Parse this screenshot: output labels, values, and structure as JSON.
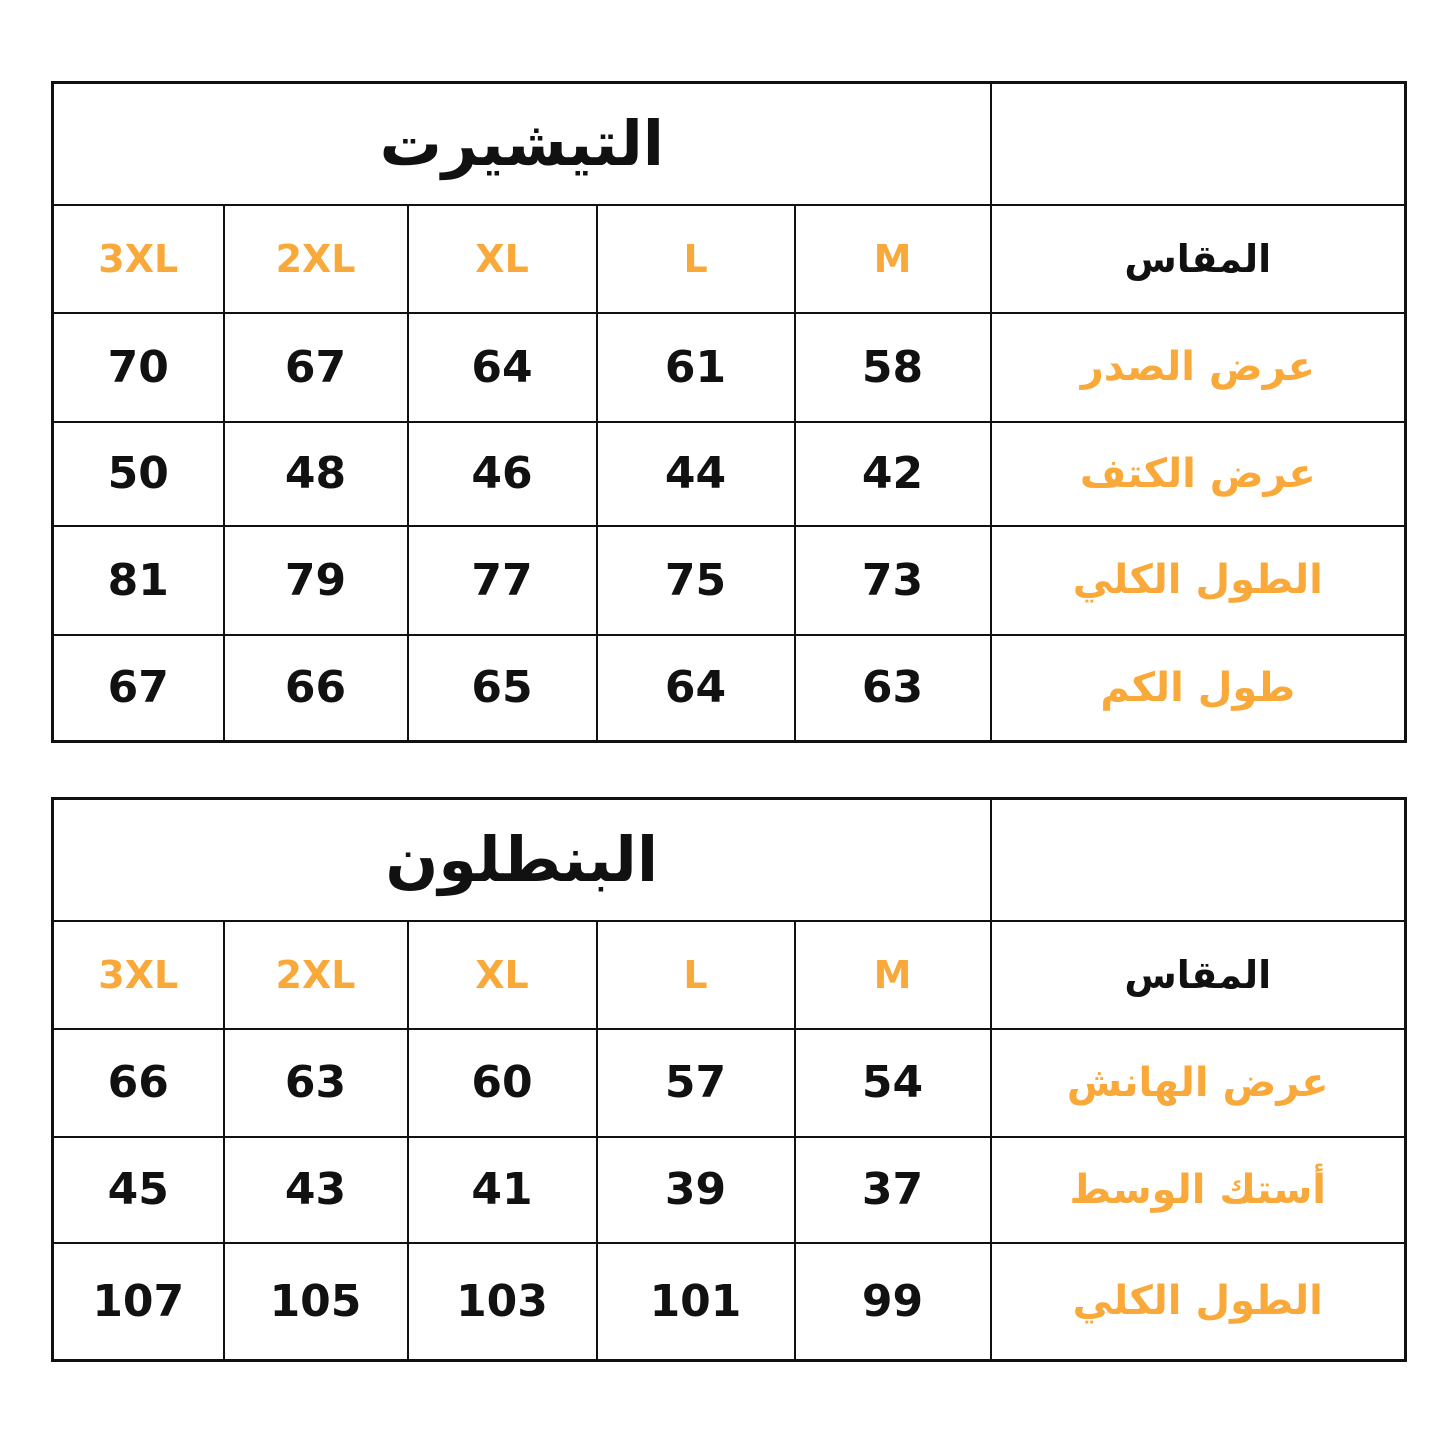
{
  "accent_color": "#f9a93a",
  "tables": [
    {
      "title": "التيشيرت",
      "size_label": "المقاس",
      "sizes": [
        "M",
        "L",
        "XL",
        "2XL",
        "3XL"
      ],
      "rows": [
        {
          "label": "عرض الصدر",
          "values": [
            "58",
            "61",
            "64",
            "67",
            "70"
          ]
        },
        {
          "label": "عرض الكتف",
          "values": [
            "42",
            "44",
            "46",
            "48",
            "50"
          ]
        },
        {
          "label": "الطول الكلي",
          "values": [
            "73",
            "75",
            "77",
            "79",
            "81"
          ]
        },
        {
          "label": "طول الكم",
          "values": [
            "63",
            "64",
            "65",
            "66",
            "67"
          ]
        }
      ]
    },
    {
      "title": "البنطلون",
      "size_label": "المقاس",
      "sizes": [
        "M",
        "L",
        "XL",
        "2XL",
        "3XL"
      ],
      "rows": [
        {
          "label": "عرض الهانش",
          "values": [
            "54",
            "57",
            "60",
            "63",
            "66"
          ]
        },
        {
          "label": "أستك الوسط",
          "values": [
            "37",
            "39",
            "41",
            "43",
            "45"
          ]
        },
        {
          "label": "الطول الكلي",
          "values": [
            "99",
            "101",
            "103",
            "105",
            "107"
          ]
        }
      ]
    }
  ]
}
